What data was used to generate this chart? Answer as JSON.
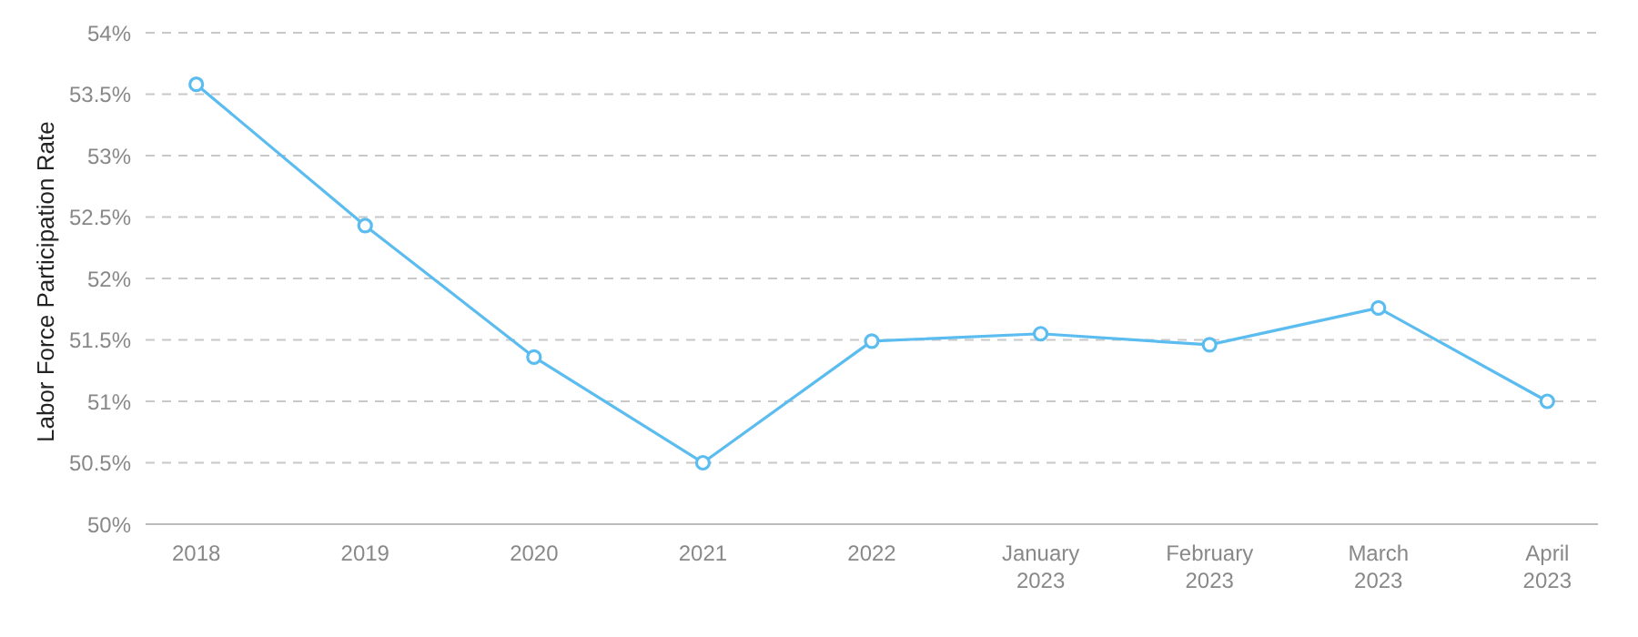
{
  "chart_data": {
    "type": "line",
    "ylabel": "Labor Force Participation Rate",
    "categories": [
      "2018",
      "2019",
      "2020",
      "2021",
      "2022",
      "January 2023",
      "February 2023",
      "March 2023",
      "April 2023"
    ],
    "series": [
      {
        "color": "#5bbcf0",
        "values": [
          53.58,
          52.43,
          51.36,
          50.5,
          51.49,
          51.55,
          51.46,
          51.76,
          51.0
        ]
      }
    ],
    "ylim": [
      50,
      54
    ],
    "yticks": [
      {
        "value": 50,
        "label": "50%"
      },
      {
        "value": 50.5,
        "label": "50.5%"
      },
      {
        "value": 51,
        "label": "51%"
      },
      {
        "value": 51.5,
        "label": "51.5%"
      },
      {
        "value": 52,
        "label": "52%"
      },
      {
        "value": 52.5,
        "label": "52.5%"
      },
      {
        "value": 53,
        "label": "53%"
      },
      {
        "value": 53.5,
        "label": "53.5%"
      },
      {
        "value": 54,
        "label": "54%"
      }
    ],
    "grid": "y",
    "marker": "circle",
    "line_style": "solid",
    "legend": false
  }
}
